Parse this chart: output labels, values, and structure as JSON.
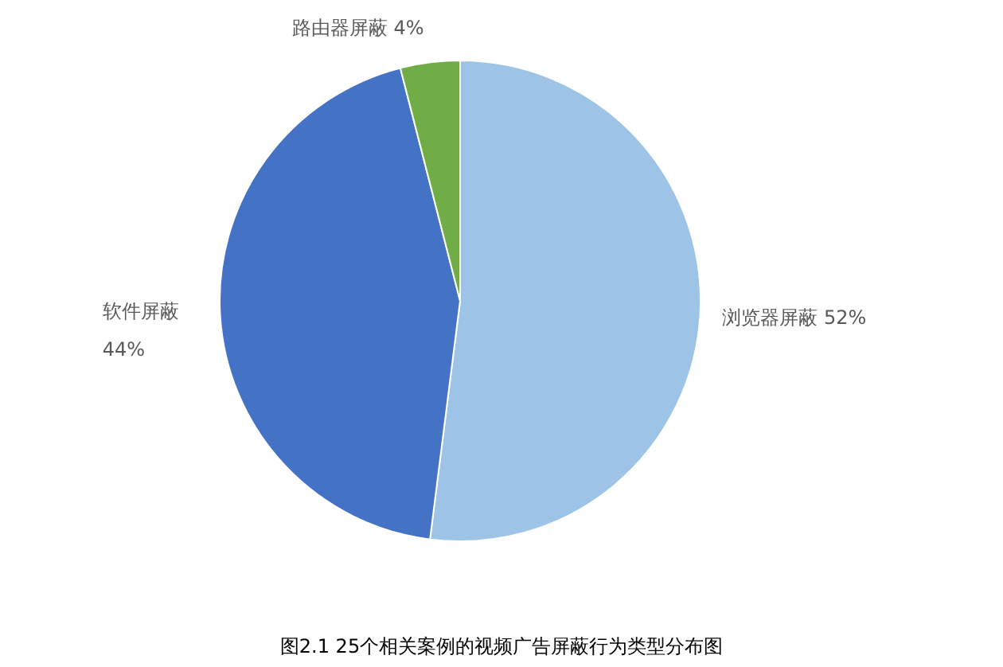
{
  "chart_data": {
    "type": "pie",
    "categories": [
      "浏览器屏蔽",
      "软件屏蔽",
      "路由器屏蔽"
    ],
    "values": [
      52,
      44,
      4
    ],
    "colors": [
      "#9dc3e6",
      "#4472c4",
      "#70ad47"
    ],
    "value_labels": [
      "52%",
      "44%",
      "4%"
    ],
    "annotations": [
      "图2.1 25个相关案例的视频广告屏蔽行为类型分布图"
    ]
  }
}
